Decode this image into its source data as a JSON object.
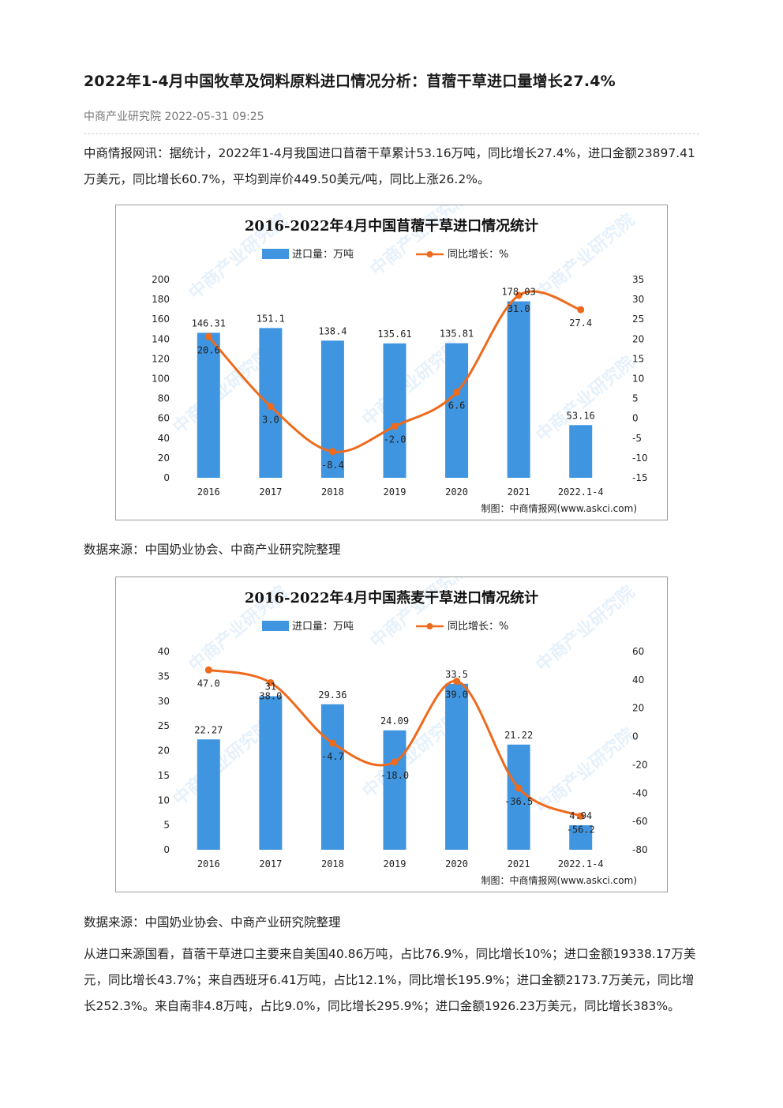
{
  "article": {
    "title": "2022年1-4月中国牧草及饲料原料进口情况分析：苜蓿干草进口量增长27.4%",
    "meta": "中商产业研究院 2022-05-31 09:25",
    "intro": "中商情报网讯：据统计，2022年1-4月我国进口苜蓿干草累计53.16万吨，同比增长27.4%，进口金额23897.41万美元，同比增长60.7%，平均到岸价449.50美元/吨，同比上涨26.2%。",
    "source1": "数据来源：中国奶业协会、中商产业研究院整理",
    "source2": "数据来源：中国奶业协会、中商产业研究院整理",
    "body": "从进口来源国看，苜蓿干草进口主要来自美国40.86万吨，占比76.9%，同比增长10%；进口金额19338.17万美元，同比增长43.7%；来自西班牙6.41万吨，占比12.1%，同比增长195.9%；进口金额2173.7万美元，同比增长252.3%。来自南非4.8万吨，占比9.0%，同比增长295.9%；进口金额1926.23万美元，同比增长383%。"
  },
  "chart_data": [
    {
      "type": "bar",
      "title": "2016-2022年4月中国苜蓿干草进口情况统计",
      "categories": [
        "2016",
        "2017",
        "2018",
        "2019",
        "2020",
        "2021",
        "2022.1-4"
      ],
      "series": [
        {
          "name": "进口量：万吨",
          "type": "bar",
          "axis": "left",
          "values": [
            146.31,
            151.1,
            138.4,
            135.61,
            135.81,
            178.03,
            53.16
          ],
          "labels": [
            "146.31",
            "151.1",
            "138.4",
            "135.61",
            "135.81",
            "178.03",
            "53.16"
          ]
        },
        {
          "name": "同比增长：%",
          "type": "line",
          "axis": "right",
          "values": [
            20.6,
            3.0,
            -8.4,
            -2.0,
            6.6,
            31.0,
            27.4
          ],
          "labels": [
            "20.6",
            "3.0",
            "-8.4",
            "-2.0",
            "6.6",
            "31.0",
            "27.4"
          ]
        }
      ],
      "ylim": [
        0,
        200
      ],
      "yticks": [
        0,
        20,
        40,
        60,
        80,
        100,
        120,
        140,
        160,
        180,
        200
      ],
      "y2lim": [
        -15,
        35
      ],
      "y2ticks": [
        -15,
        -10,
        -5,
        0,
        5,
        10,
        15,
        20,
        25,
        30,
        35
      ],
      "credit": "制图：中商情报网(www.askci.com)",
      "watermark": "中商产业研究院",
      "legend": "top",
      "colors": {
        "bar": "#3f95e0",
        "line": "#ee6a1c"
      }
    },
    {
      "type": "bar",
      "title": "2016-2022年4月中国燕麦干草进口情况统计",
      "categories": [
        "2016",
        "2017",
        "2018",
        "2019",
        "2020",
        "2021",
        "2022.1-4"
      ],
      "series": [
        {
          "name": "进口量：万吨",
          "type": "bar",
          "axis": "left",
          "values": [
            22.27,
            31,
            29.36,
            24.09,
            33.5,
            21.22,
            4.94
          ],
          "labels": [
            "22.27",
            "31",
            "29.36",
            "24.09",
            "33.5",
            "21.22",
            "4.94"
          ]
        },
        {
          "name": "同比增长：%",
          "type": "line",
          "axis": "right",
          "values": [
            47.0,
            38.0,
            -4.7,
            -18.0,
            39.0,
            -36.5,
            -56.2
          ],
          "labels": [
            "47.0",
            "38.0",
            "-4.7",
            "-18.0",
            "39.0",
            "-36.5",
            "-56.2"
          ]
        }
      ],
      "ylim": [
        0,
        40
      ],
      "yticks": [
        0,
        5,
        10,
        15,
        20,
        25,
        30,
        35,
        40
      ],
      "y2lim": [
        -80,
        60
      ],
      "y2ticks": [
        -80,
        -60,
        -40,
        -20,
        0,
        20,
        40,
        60
      ],
      "credit": "制图：中商情报网(www.askci.com)",
      "watermark": "中商产业研究院",
      "legend": "top",
      "colors": {
        "bar": "#3f95e0",
        "line": "#ee6a1c"
      }
    }
  ]
}
